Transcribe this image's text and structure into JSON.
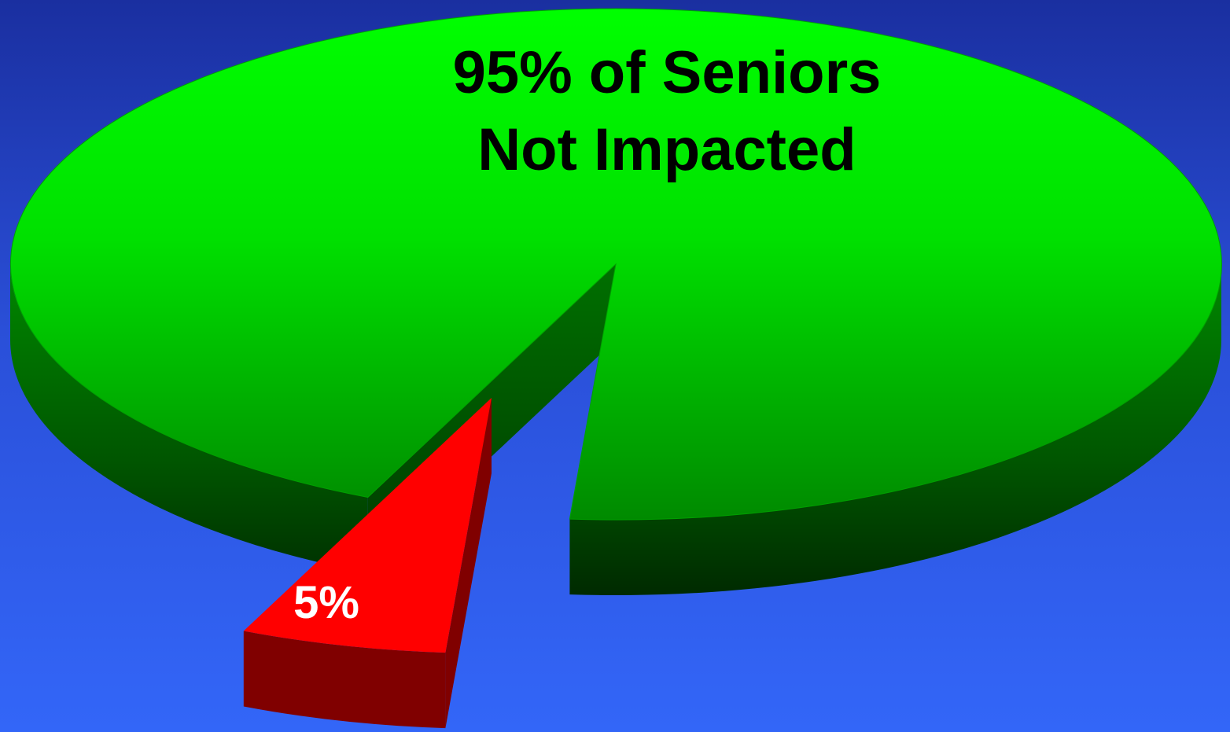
{
  "chart_data": {
    "type": "pie",
    "title": "",
    "slices": [
      {
        "value": 95,
        "label_line1": "95% of Seniors",
        "label_line2": "Not Impacted",
        "color": "#00ff00",
        "side_color": "#007a00",
        "exploded": false
      },
      {
        "value": 5,
        "label_line1": "5%",
        "label_line2": "",
        "color": "#ff0000",
        "side_color": "#800000",
        "exploded": true
      }
    ],
    "style": "3d-exploded",
    "legend": "none"
  }
}
